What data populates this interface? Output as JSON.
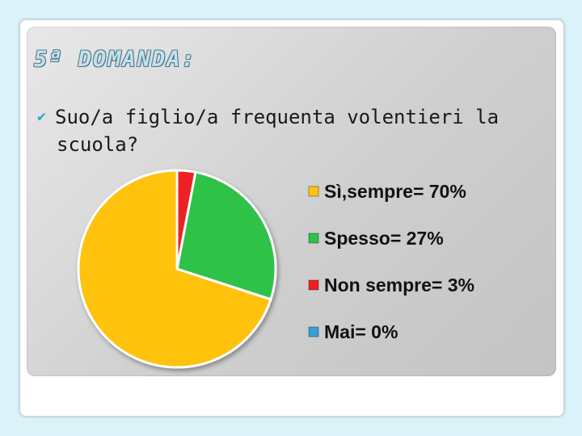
{
  "slide": {
    "title": "5ª DOMANDA:",
    "question_line1": "Suo/a figlio/a frequenta volentieri la",
    "question_line2": "scuola?"
  },
  "chart_data": {
    "type": "pie",
    "categories": [
      "Sì,sempre= 70%",
      "Spesso= 27%",
      "Non sempre= 3%",
      "Mai= 0%"
    ],
    "values": [
      70,
      27,
      3,
      0
    ],
    "colors": [
      "#ffc20e",
      "#2fc24a",
      "#ee2020",
      "#3a9fd8"
    ],
    "legend_position": "right"
  }
}
